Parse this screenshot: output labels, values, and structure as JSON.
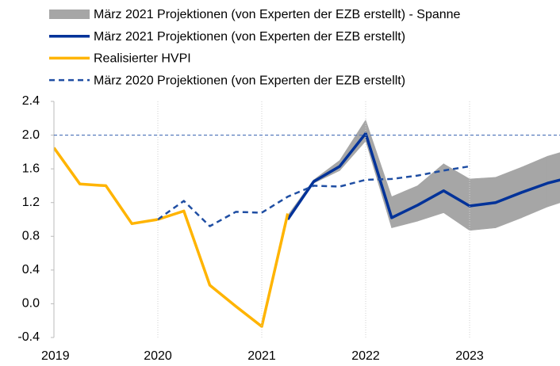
{
  "chart_data": {
    "type": "line",
    "xlim": [
      2019,
      2023.87
    ],
    "xticks": [
      2019,
      2020,
      2021,
      2022,
      2023
    ],
    "ylim": [
      -0.4,
      2.4
    ],
    "yticks": [
      {
        "value": -0.4,
        "label": "-0.4"
      },
      {
        "value": 0,
        "label": "0.0"
      },
      0.4,
      0.8,
      1.2,
      1.6,
      {
        "value": 2,
        "label": "2.0"
      },
      2.4
    ],
    "reference_line": {
      "value": 2,
      "color": "#4a70b8"
    },
    "grid": true,
    "legend": "top",
    "series": [
      {
        "name": "März 2021 Projektionen (von Experten der EZB erstellt) - Spanne",
        "type": "band",
        "color": "#a6a6a6",
        "x": [
          2021.25,
          2021.5,
          2021.75,
          2022,
          2022.25,
          2022.5,
          2022.75,
          2023,
          2023.25,
          2023.5,
          2023.75,
          2024
        ],
        "lower": [
          1.0,
          1.43,
          1.58,
          1.93,
          0.9,
          0.98,
          1.08,
          0.87,
          0.9,
          1.02,
          1.15,
          1.25
        ],
        "upper": [
          1.05,
          1.47,
          1.7,
          2.18,
          1.27,
          1.4,
          1.66,
          1.48,
          1.5,
          1.62,
          1.75,
          1.84
        ]
      },
      {
        "name": "März 2021 Projektionen (von Experten der EZB erstellt)",
        "type": "line",
        "color": "#003299",
        "x": [
          2021.25,
          2021.5,
          2021.75,
          2022,
          2022.25,
          2022.5,
          2022.75,
          2023,
          2023.25,
          2023.5,
          2023.75,
          2024
        ],
        "values": [
          1.0,
          1.45,
          1.63,
          2.02,
          1.02,
          1.17,
          1.34,
          1.16,
          1.2,
          1.32,
          1.43,
          1.51
        ]
      },
      {
        "name": "Realisierter HVPI",
        "type": "line",
        "color": "#ffb400",
        "x": [
          2019,
          2019.25,
          2019.5,
          2019.75,
          2020,
          2020.25,
          2020.5,
          2020.75,
          2021,
          2021.25
        ],
        "values": [
          1.85,
          1.42,
          1.4,
          0.95,
          1.0,
          1.1,
          0.22,
          -0.03,
          -0.27,
          1.07
        ]
      },
      {
        "name": "März 2020 Projektionen (von Experten der EZB erstellt)",
        "type": "dashed",
        "color": "#1f4ea3",
        "x": [
          2020,
          2020.25,
          2020.5,
          2020.75,
          2021,
          2021.25,
          2021.5,
          2021.75,
          2022,
          2022.25,
          2022.5,
          2022.75,
          2023
        ],
        "values": [
          1.0,
          1.22,
          0.92,
          1.09,
          1.08,
          1.27,
          1.4,
          1.39,
          1.47,
          1.48,
          1.52,
          1.58,
          1.63
        ]
      }
    ]
  }
}
